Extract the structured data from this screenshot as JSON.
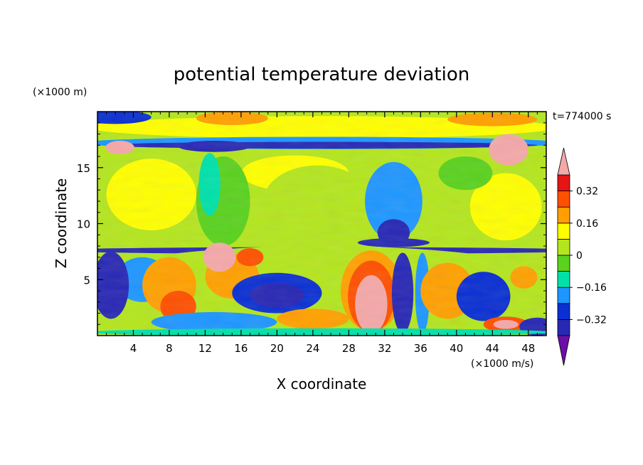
{
  "chart_data": {
    "type": "heatmap",
    "title": "potential temperature deviation",
    "xlabel": "X coordinate",
    "ylabel": "Z coordinate",
    "x_unit": "(×1000 m/s)",
    "y_unit": "(×1000 m)",
    "time_label": "t=774000 s",
    "xlim": [
      0,
      50
    ],
    "ylim": [
      0,
      20
    ],
    "x_ticks": [
      4,
      8,
      12,
      16,
      20,
      24,
      28,
      32,
      36,
      40,
      44,
      48
    ],
    "y_ticks": [
      5,
      10,
      15
    ],
    "colorbar": {
      "levels": [
        -0.4,
        -0.32,
        -0.24,
        -0.16,
        -0.08,
        0,
        0.08,
        0.16,
        0.24,
        0.32,
        0.4
      ],
      "labels": [
        "0.32",
        "0.16",
        "0",
        "−0.16",
        "−0.32"
      ],
      "label_values": [
        0.32,
        0.16,
        0,
        -0.16,
        -0.32
      ],
      "colors": [
        "#6a0fa8",
        "#2828b4",
        "#0a2fd2",
        "#1e96ff",
        "#00e1aa",
        "#5ad21e",
        "#b4e61e",
        "#ffff00",
        "#ffa000",
        "#ff5000",
        "#e61414",
        "#f4a8a8"
      ],
      "extend": "both"
    },
    "field_description_points": [
      {
        "x": 2,
        "z": 16.8,
        "v": 0.45
      },
      {
        "x": 46,
        "z": 16.5,
        "v": 0.45
      },
      {
        "x": 13.5,
        "z": 7,
        "v": 0.45
      },
      {
        "x": 30.5,
        "z": 2.5,
        "v": 0.45
      },
      {
        "x": 33,
        "z": 12.5,
        "v": -0.2
      },
      {
        "x": 33,
        "z": 9,
        "v": -0.32
      },
      {
        "x": 15,
        "z": 17.5,
        "v": -0.3
      },
      {
        "x": 25,
        "z": 12,
        "v": 0.12
      },
      {
        "x": 8,
        "z": 12,
        "v": 0.12
      },
      {
        "x": 45,
        "z": 12,
        "v": 0.06
      }
    ]
  }
}
